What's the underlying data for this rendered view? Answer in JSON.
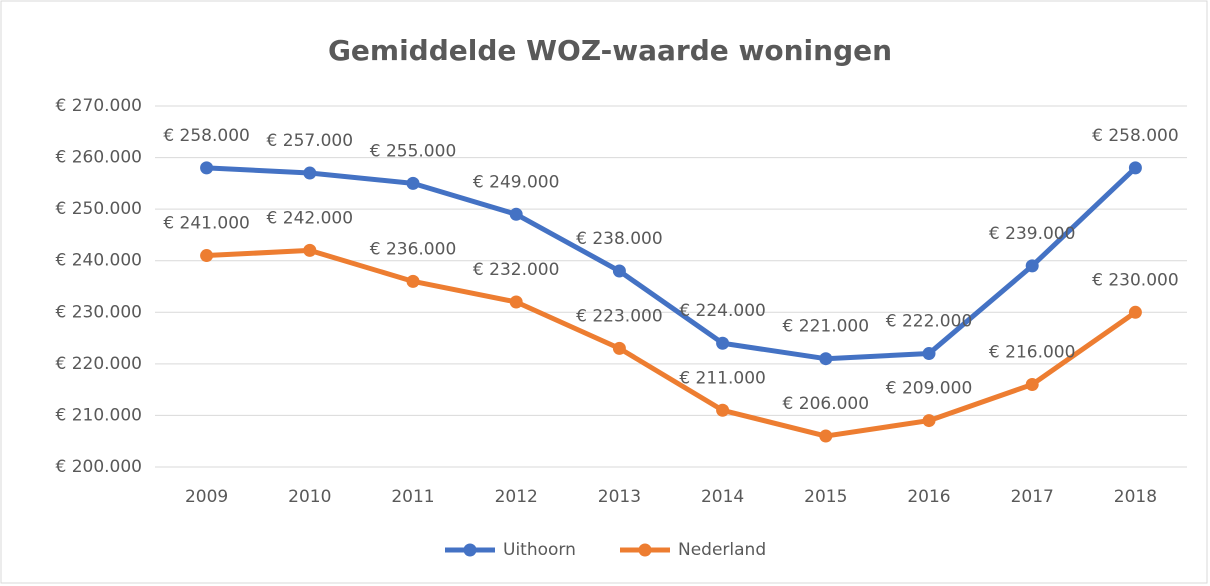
{
  "chart_data": {
    "type": "line",
    "title": "Gemiddelde WOZ-waarde woningen",
    "categories": [
      "2009",
      "2010",
      "2011",
      "2012",
      "2013",
      "2014",
      "2015",
      "2016",
      "2017",
      "2018"
    ],
    "series": [
      {
        "name": "Uithoorn",
        "color": "#4472c4",
        "values": [
          258000,
          257000,
          255000,
          249000,
          238000,
          224000,
          221000,
          222000,
          239000,
          258000
        ],
        "value_labels": [
          "€ 258.000",
          "€ 257.000",
          "€ 255.000",
          "€ 249.000",
          "€ 238.000",
          "€ 224.000",
          "€ 221.000",
          "€ 222.000",
          "€ 239.000",
          "€ 258.000"
        ]
      },
      {
        "name": "Nederland",
        "color": "#ed7d31",
        "values": [
          241000,
          242000,
          236000,
          232000,
          223000,
          211000,
          206000,
          209000,
          216000,
          230000
        ],
        "value_labels": [
          "€ 241.000",
          "€ 242.000",
          "€ 236.000",
          "€ 232.000",
          "€ 223.000",
          "€ 211.000",
          "€ 206.000",
          "€ 209.000",
          "€ 216.000",
          "€ 230.000"
        ]
      }
    ],
    "ylim": [
      200000,
      270000
    ],
    "yticks": [
      {
        "value": 200000,
        "label": "€ 200.000"
      },
      {
        "value": 210000,
        "label": "€ 210.000"
      },
      {
        "value": 220000,
        "label": "€ 220.000"
      },
      {
        "value": 230000,
        "label": "€ 230.000"
      },
      {
        "value": 240000,
        "label": "€ 240.000"
      },
      {
        "value": 250000,
        "label": "€ 250.000"
      },
      {
        "value": 260000,
        "label": "€ 260.000"
      },
      {
        "value": 270000,
        "label": "€ 270.000"
      }
    ],
    "grid": true,
    "legend": "bottom"
  }
}
